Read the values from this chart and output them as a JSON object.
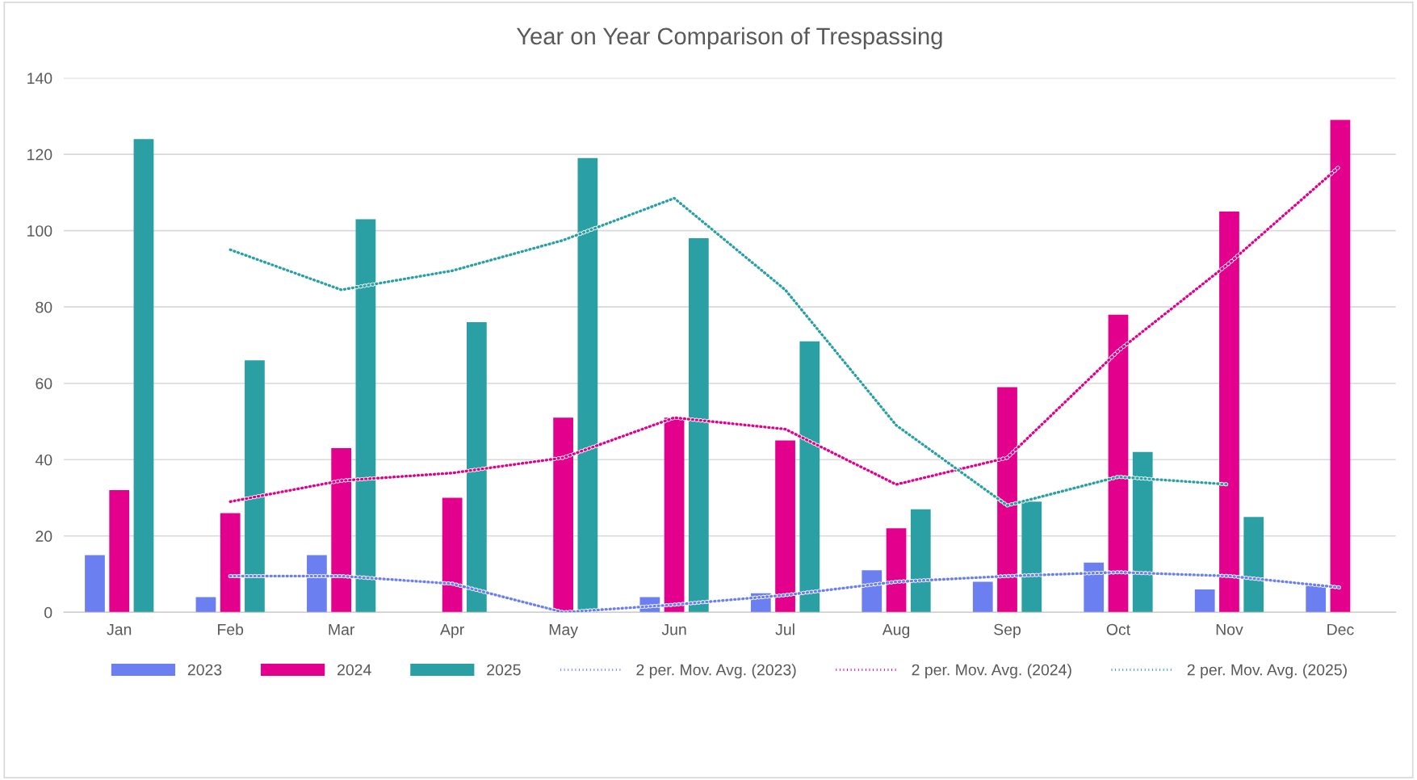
{
  "chart_data": {
    "type": "bar",
    "title": "Year on Year Comparison of Trespassing",
    "categories": [
      "Jan",
      "Feb",
      "Mar",
      "Apr",
      "May",
      "Jun",
      "Jul",
      "Aug",
      "Sep",
      "Oct",
      "Nov",
      "Dec"
    ],
    "series": [
      {
        "name": "2023",
        "color": "#6b7ff0",
        "values": [
          15,
          4,
          15,
          0,
          0,
          4,
          5,
          11,
          8,
          13,
          6,
          7
        ]
      },
      {
        "name": "2024",
        "color": "#e3008c",
        "values": [
          32,
          26,
          43,
          30,
          51,
          51,
          45,
          22,
          59,
          78,
          105,
          129
        ]
      },
      {
        "name": "2025",
        "color": "#2aa0a4",
        "values": [
          124,
          66,
          103,
          76,
          119,
          98,
          71,
          27,
          29,
          42,
          25,
          null
        ]
      },
      {
        "name": "2 per. Mov. Avg. (2023)",
        "type": "line",
        "line_style": "dotted",
        "color": "#6b7ff0",
        "values": [
          null,
          9.5,
          9.5,
          7.5,
          0,
          2,
          4.5,
          8,
          9.5,
          10.5,
          9.5,
          6.5
        ]
      },
      {
        "name": "2 per. Mov. Avg. (2024)",
        "type": "line",
        "line_style": "dotted",
        "color": "#e3008c",
        "values": [
          null,
          29,
          34.5,
          36.5,
          40.5,
          51,
          48,
          33.5,
          40.5,
          68.5,
          91.5,
          117
        ]
      },
      {
        "name": "2 per. Mov. Avg. (2025)",
        "type": "line",
        "line_style": "dotted",
        "color": "#2aa0a4",
        "values": [
          null,
          95,
          84.5,
          89.5,
          97.5,
          108.5,
          84.5,
          49,
          28,
          35.5,
          33.5,
          null
        ]
      }
    ],
    "ylim": [
      0,
      140
    ],
    "yticks": [
      0,
      20,
      40,
      60,
      80,
      100,
      120,
      140
    ],
    "grid": "y",
    "legend": "bottom"
  }
}
